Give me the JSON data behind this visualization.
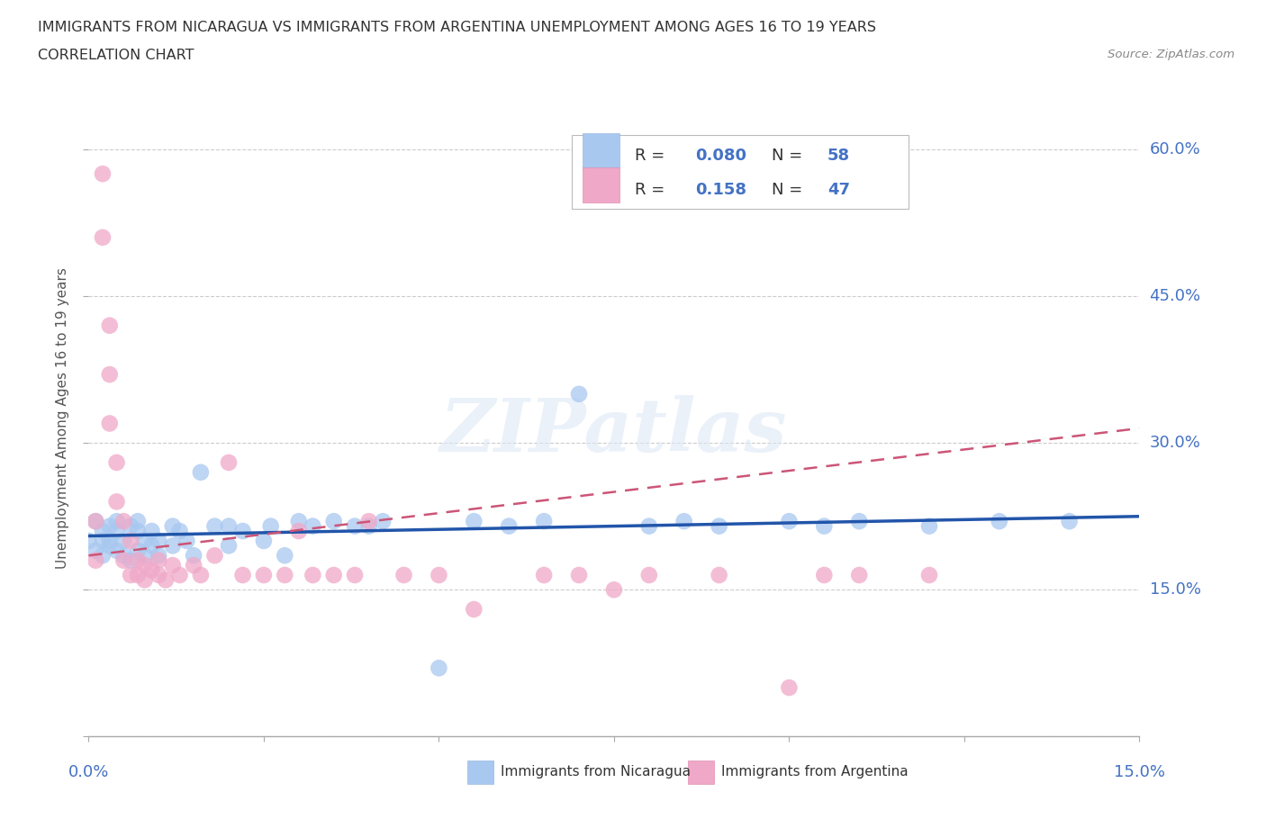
{
  "title_line1": "IMMIGRANTS FROM NICARAGUA VS IMMIGRANTS FROM ARGENTINA UNEMPLOYMENT AMONG AGES 16 TO 19 YEARS",
  "title_line2": "CORRELATION CHART",
  "source_text": "Source: ZipAtlas.com",
  "ylabel": "Unemployment Among Ages 16 to 19 years",
  "xmin": 0.0,
  "xmax": 0.15,
  "ymin": 0.0,
  "ymax": 0.65,
  "yticks": [
    0.0,
    0.15,
    0.3,
    0.45,
    0.6
  ],
  "ytick_labels": [
    "0.0%",
    "15.0%",
    "30.0%",
    "45.0%",
    "60.0%"
  ],
  "nicaragua_color": "#a8c8f0",
  "argentina_color": "#f0a8c8",
  "nicaragua_line_color": "#2255aa",
  "argentina_line_color": "#cc5577",
  "legend_r_nicaragua": "R = 0.080",
  "legend_n_nicaragua": "N = 58",
  "legend_r_argentina": "R =  0.158",
  "legend_n_argentina": "N = 47",
  "grid_color": "#cccccc",
  "background_color": "#ffffff",
  "watermark": "ZIPatlas",
  "nic_x": [
    0.0,
    0.001,
    0.001,
    0.002,
    0.002,
    0.002,
    0.003,
    0.003,
    0.003,
    0.004,
    0.004,
    0.004,
    0.005,
    0.005,
    0.006,
    0.006,
    0.007,
    0.007,
    0.007,
    0.008,
    0.008,
    0.009,
    0.009,
    0.01,
    0.01,
    0.012,
    0.012,
    0.013,
    0.014,
    0.015,
    0.016,
    0.018,
    0.02,
    0.02,
    0.022,
    0.025,
    0.026,
    0.028,
    0.03,
    0.032,
    0.035,
    0.038,
    0.04,
    0.042,
    0.05,
    0.055,
    0.06,
    0.065,
    0.07,
    0.08,
    0.085,
    0.09,
    0.1,
    0.105,
    0.11,
    0.12,
    0.13,
    0.14
  ],
  "nic_y": [
    0.2,
    0.22,
    0.19,
    0.21,
    0.2,
    0.185,
    0.215,
    0.2,
    0.195,
    0.22,
    0.19,
    0.21,
    0.2,
    0.185,
    0.215,
    0.18,
    0.22,
    0.19,
    0.21,
    0.2,
    0.185,
    0.195,
    0.21,
    0.2,
    0.185,
    0.215,
    0.195,
    0.21,
    0.2,
    0.185,
    0.27,
    0.215,
    0.195,
    0.215,
    0.21,
    0.2,
    0.215,
    0.185,
    0.22,
    0.215,
    0.22,
    0.215,
    0.215,
    0.22,
    0.07,
    0.22,
    0.215,
    0.22,
    0.35,
    0.215,
    0.22,
    0.215,
    0.22,
    0.215,
    0.22,
    0.215,
    0.22,
    0.22
  ],
  "arg_x": [
    0.001,
    0.001,
    0.002,
    0.002,
    0.003,
    0.003,
    0.003,
    0.004,
    0.004,
    0.005,
    0.005,
    0.006,
    0.006,
    0.007,
    0.007,
    0.008,
    0.008,
    0.009,
    0.01,
    0.01,
    0.011,
    0.012,
    0.013,
    0.015,
    0.016,
    0.018,
    0.02,
    0.022,
    0.025,
    0.028,
    0.03,
    0.032,
    0.035,
    0.038,
    0.04,
    0.045,
    0.05,
    0.055,
    0.065,
    0.07,
    0.075,
    0.08,
    0.09,
    0.1,
    0.105,
    0.11,
    0.12
  ],
  "arg_y": [
    0.22,
    0.18,
    0.575,
    0.51,
    0.42,
    0.37,
    0.32,
    0.28,
    0.24,
    0.22,
    0.18,
    0.2,
    0.165,
    0.18,
    0.165,
    0.175,
    0.16,
    0.17,
    0.18,
    0.165,
    0.16,
    0.175,
    0.165,
    0.175,
    0.165,
    0.185,
    0.28,
    0.165,
    0.165,
    0.165,
    0.21,
    0.165,
    0.165,
    0.165,
    0.22,
    0.165,
    0.165,
    0.13,
    0.165,
    0.165,
    0.15,
    0.165,
    0.165,
    0.05,
    0.165,
    0.165,
    0.165
  ]
}
